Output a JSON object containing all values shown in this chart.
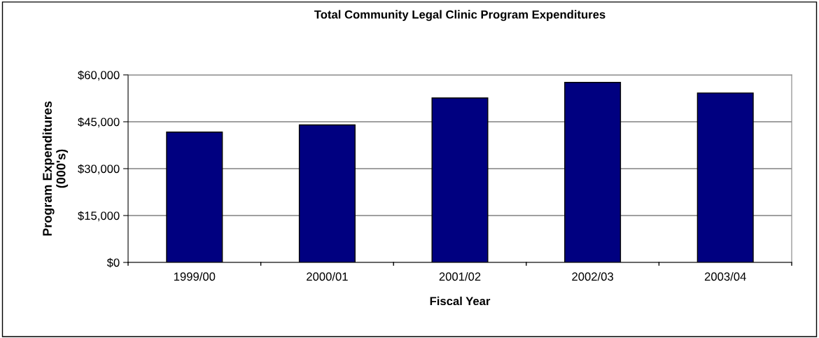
{
  "chart_data": {
    "type": "bar",
    "title": "Total Community Legal Clinic Program Expenditures",
    "xlabel": "Fiscal Year",
    "ylabel": "Program Expenditures\n(000's)",
    "categories": [
      "1999/00",
      "2000/01",
      "2001/02",
      "2002/03",
      "2003/04"
    ],
    "values": [
      41700,
      44000,
      52600,
      57600,
      54200
    ],
    "color": "#000080",
    "ylim": [
      0,
      60000
    ],
    "yticks": [
      {
        "value": 0,
        "label": "$0"
      },
      {
        "value": 15000,
        "label": "$15,000"
      },
      {
        "value": 30000,
        "label": "$30,000"
      },
      {
        "value": 45000,
        "label": "$45,000"
      },
      {
        "value": 60000,
        "label": "$60,000"
      }
    ],
    "grid": "y",
    "legend": false
  }
}
